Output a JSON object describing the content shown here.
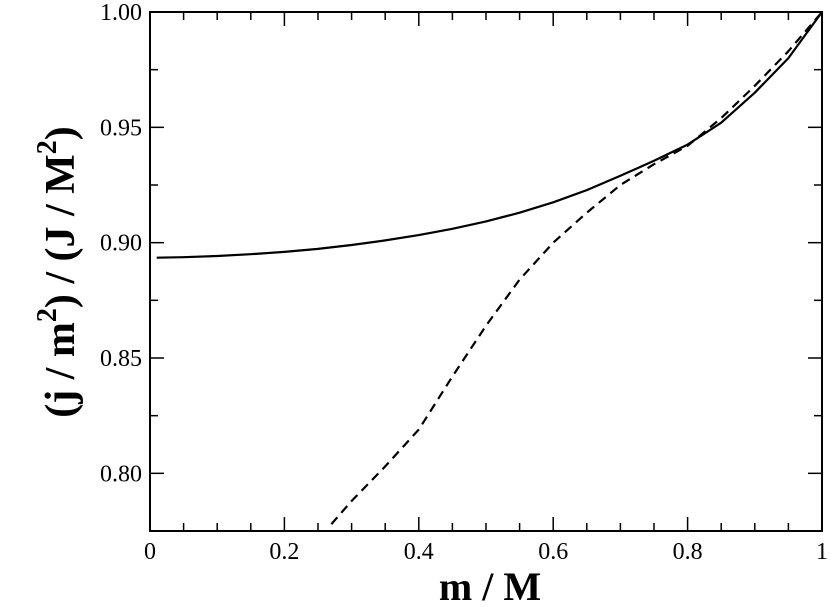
{
  "chart_data": {
    "type": "line",
    "title": "",
    "xlabel": "m / M",
    "ylabel": {
      "parts": [
        "(j / m",
        "2",
        ") / (J / M",
        "2",
        ")"
      ]
    },
    "xlim": [
      0,
      1
    ],
    "ylim": [
      0.775,
      1.0
    ],
    "x_ticks": [
      0,
      0.2,
      0.4,
      0.6,
      0.8,
      1
    ],
    "x_tick_labels": [
      "0",
      "0.2",
      "0.4",
      "0.6",
      "0.8",
      "1"
    ],
    "y_ticks": [
      0.8,
      0.85,
      0.9,
      0.95,
      1.0
    ],
    "y_tick_labels": [
      "0.80",
      "0.85",
      "0.90",
      "0.95",
      "1.00"
    ],
    "grid": false,
    "legend": "none",
    "series": [
      {
        "style": "solid",
        "color": "#000000",
        "x": [
          0.01,
          0.05,
          0.1,
          0.15,
          0.2,
          0.25,
          0.3,
          0.35,
          0.4,
          0.45,
          0.5,
          0.55,
          0.6,
          0.65,
          0.7,
          0.75,
          0.8,
          0.85,
          0.9,
          0.95,
          1.0
        ],
        "y": [
          0.8935,
          0.8937,
          0.8942,
          0.895,
          0.896,
          0.8973,
          0.899,
          0.901,
          0.9033,
          0.906,
          0.9092,
          0.913,
          0.9175,
          0.9228,
          0.929,
          0.9355,
          0.9425,
          0.952,
          0.965,
          0.98,
          1.0
        ]
      },
      {
        "style": "dashed",
        "color": "#000000",
        "x": [
          0.27,
          0.3,
          0.35,
          0.4,
          0.45,
          0.5,
          0.55,
          0.6,
          0.65,
          0.7,
          0.75,
          0.8,
          0.85,
          0.9,
          0.95,
          1.0
        ],
        "y": [
          0.778,
          0.788,
          0.803,
          0.819,
          0.842,
          0.864,
          0.884,
          0.9,
          0.913,
          0.925,
          0.934,
          0.942,
          0.954,
          0.968,
          0.983,
          1.0
        ]
      }
    ]
  }
}
